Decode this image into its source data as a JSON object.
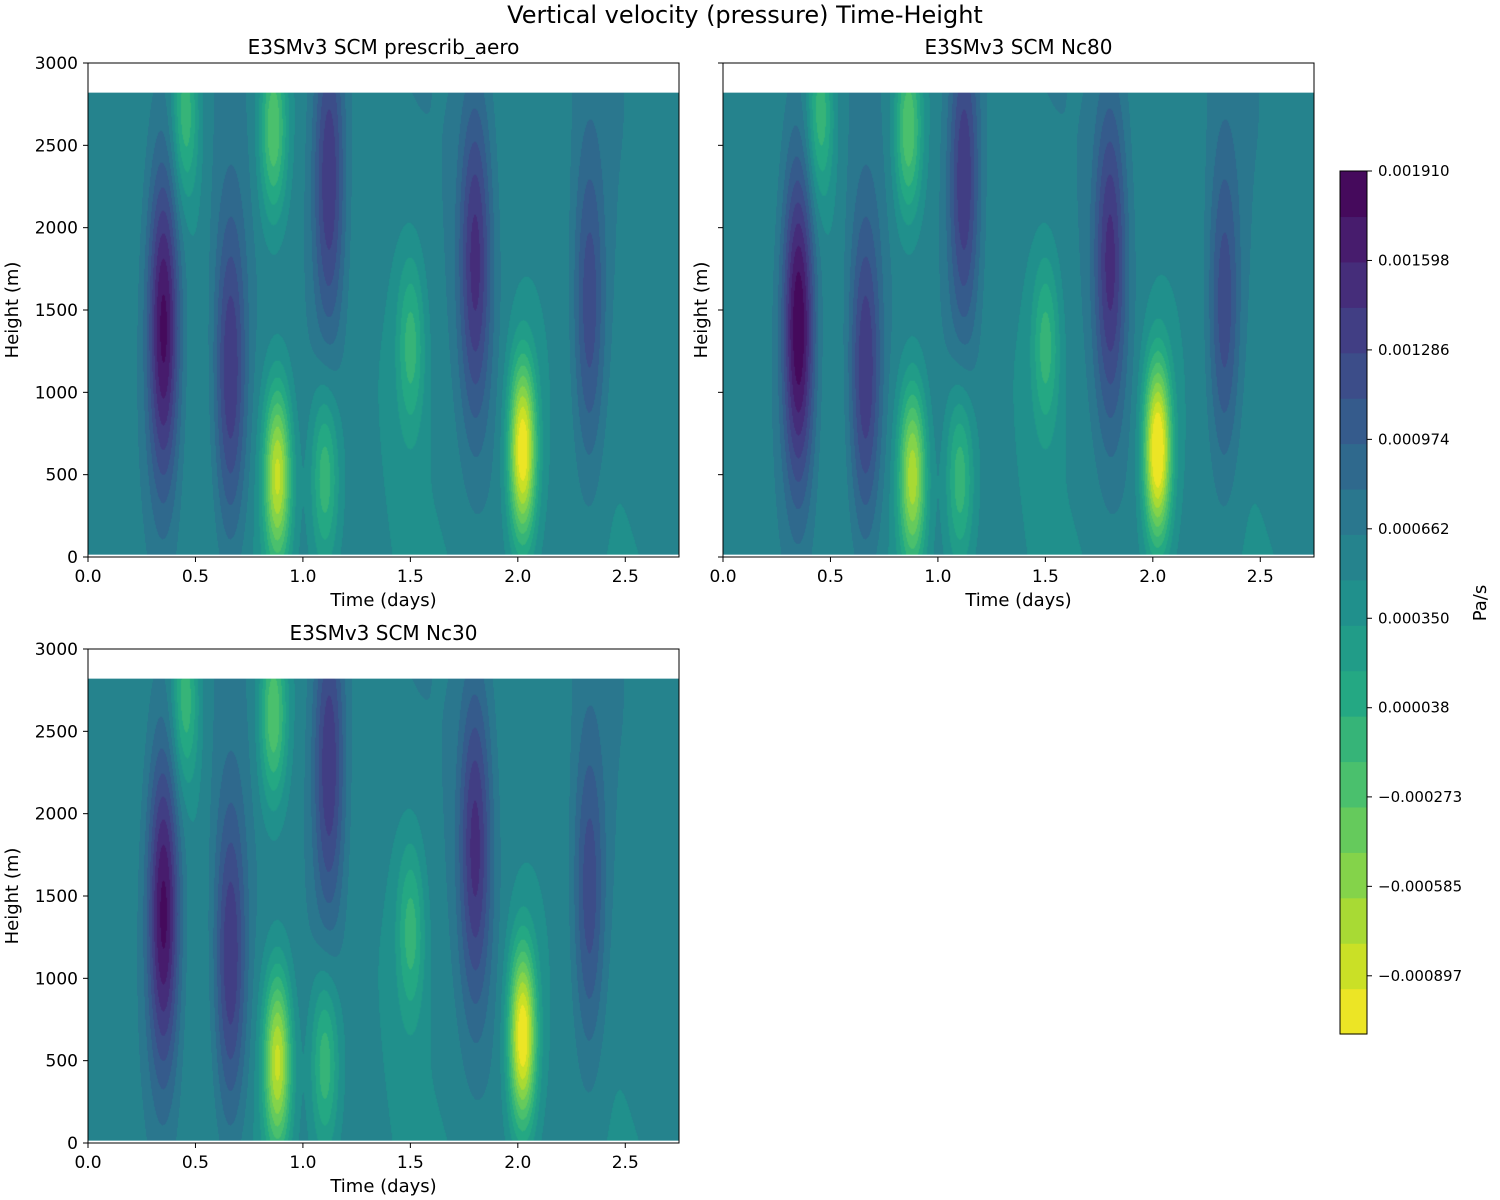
{
  "figure": {
    "title": "Vertical velocity (pressure) Time-Height"
  },
  "colorbar": {
    "label": "Pa/s",
    "tick_labels": [
      "0.001910",
      "0.001598",
      "0.001286",
      "0.000974",
      "0.000662",
      "0.000350",
      "0.000038",
      "−0.000273",
      "−0.000585",
      "−0.000897"
    ],
    "tick_values": [
      0.00191,
      0.001598,
      0.001286,
      0.000974,
      0.000662,
      0.00035,
      3.8e-05,
      -0.000273,
      -0.000585,
      -0.000897
    ],
    "range": [
      -0.0011,
      0.00191
    ],
    "levels": 19,
    "colormap": "viridis_r"
  },
  "chart_data": [
    {
      "type": "heatmap",
      "title": "E3SMv3 SCM prescrib_aero",
      "xlabel": "Time (days)",
      "ylabel": "Height (m)",
      "xlim": [
        0,
        2.75
      ],
      "ylim": [
        0,
        3000
      ],
      "data_top": 2820,
      "x_tick_labels": [
        "0.0",
        "0.5",
        "1.0",
        "1.5",
        "2.0",
        "2.5"
      ],
      "y_tick_labels": [
        "0",
        "500",
        "1000",
        "1500",
        "2000",
        "2500",
        "3000"
      ],
      "features": [
        {
          "kind": "max",
          "t": 0.35,
          "z": 1400,
          "amplitude": 0.0013
        },
        {
          "kind": "max",
          "t": 0.66,
          "z": 1100,
          "amplitude": 0.0009
        },
        {
          "kind": "max",
          "t": 1.12,
          "z": 2300,
          "amplitude": 0.0009
        },
        {
          "kind": "max",
          "t": 1.8,
          "z": 1800,
          "amplitude": 0.0009
        },
        {
          "kind": "max",
          "t": 2.33,
          "z": 1500,
          "amplitude": 0.0007
        },
        {
          "kind": "min",
          "t": 0.88,
          "z": 500,
          "amplitude": -0.0014
        },
        {
          "kind": "min",
          "t": 0.86,
          "z": 2600,
          "amplitude": -0.0009
        },
        {
          "kind": "min",
          "t": 0.45,
          "z": 2700,
          "amplitude": -0.0007
        },
        {
          "kind": "min",
          "t": 2.02,
          "z": 650,
          "amplitude": -0.0017
        },
        {
          "kind": "min",
          "t": 1.1,
          "z": 500,
          "amplitude": -0.0007
        },
        {
          "kind": "min",
          "t": 1.5,
          "z": 1300,
          "amplitude": -0.0006
        }
      ]
    },
    {
      "type": "heatmap",
      "title": "E3SMv3 SCM Nc80",
      "xlabel": "Time (days)",
      "ylabel": "Height (m)",
      "xlim": [
        0,
        2.75
      ],
      "ylim": [
        0,
        3000
      ],
      "data_top": 2820,
      "x_tick_labels": [
        "0.0",
        "0.5",
        "1.0",
        "1.5",
        "2.0",
        "2.5"
      ],
      "y_tick_labels": [],
      "features": [
        {
          "kind": "max",
          "t": 0.35,
          "z": 1400,
          "amplitude": 0.0014
        },
        {
          "kind": "max",
          "t": 0.66,
          "z": 1100,
          "amplitude": 0.0009
        },
        {
          "kind": "max",
          "t": 1.12,
          "z": 2300,
          "amplitude": 0.0009
        },
        {
          "kind": "max",
          "t": 1.8,
          "z": 1800,
          "amplitude": 0.0009
        },
        {
          "kind": "max",
          "t": 2.33,
          "z": 1500,
          "amplitude": 0.0007
        },
        {
          "kind": "min",
          "t": 0.88,
          "z": 500,
          "amplitude": -0.0013
        },
        {
          "kind": "min",
          "t": 0.86,
          "z": 2600,
          "amplitude": -0.0009
        },
        {
          "kind": "min",
          "t": 0.45,
          "z": 2700,
          "amplitude": -0.0007
        },
        {
          "kind": "min",
          "t": 2.02,
          "z": 650,
          "amplitude": -0.0018
        },
        {
          "kind": "min",
          "t": 1.1,
          "z": 500,
          "amplitude": -0.0007
        },
        {
          "kind": "min",
          "t": 1.5,
          "z": 1300,
          "amplitude": -0.0006
        }
      ]
    },
    {
      "type": "heatmap",
      "title": "E3SMv3 SCM Nc30",
      "xlabel": "Time (days)",
      "ylabel": "Height (m)",
      "xlim": [
        0,
        2.75
      ],
      "ylim": [
        0,
        3000
      ],
      "data_top": 2820,
      "x_tick_labels": [
        "0.0",
        "0.5",
        "1.0",
        "1.5",
        "2.0",
        "2.5"
      ],
      "y_tick_labels": [
        "0",
        "500",
        "1000",
        "1500",
        "2000",
        "2500",
        "3000"
      ],
      "features": [
        {
          "kind": "max",
          "t": 0.35,
          "z": 1400,
          "amplitude": 0.0013
        },
        {
          "kind": "max",
          "t": 0.66,
          "z": 1100,
          "amplitude": 0.0009
        },
        {
          "kind": "max",
          "t": 1.12,
          "z": 2300,
          "amplitude": 0.0009
        },
        {
          "kind": "max",
          "t": 1.8,
          "z": 1800,
          "amplitude": 0.0009
        },
        {
          "kind": "max",
          "t": 2.33,
          "z": 1500,
          "amplitude": 0.0007
        },
        {
          "kind": "min",
          "t": 0.88,
          "z": 500,
          "amplitude": -0.0014
        },
        {
          "kind": "min",
          "t": 0.86,
          "z": 2600,
          "amplitude": -0.0009
        },
        {
          "kind": "min",
          "t": 0.45,
          "z": 2700,
          "amplitude": -0.0007
        },
        {
          "kind": "min",
          "t": 2.02,
          "z": 650,
          "amplitude": -0.0017
        },
        {
          "kind": "min",
          "t": 1.1,
          "z": 500,
          "amplitude": -0.0007
        },
        {
          "kind": "min",
          "t": 1.5,
          "z": 1300,
          "amplitude": -0.0006
        }
      ]
    }
  ]
}
